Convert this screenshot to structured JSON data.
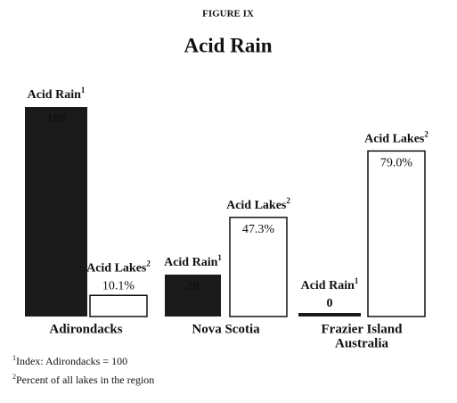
{
  "chart_data": {
    "type": "bar",
    "figure_label": "FIGURE IX",
    "title": "Acid Rain",
    "categories": [
      "Adirondacks",
      "Nova Scotia",
      [
        "Frazier Island",
        "Australia"
      ]
    ],
    "series": [
      {
        "name": "Acid Rain",
        "note": "1",
        "color": "#1a1a1a",
        "values": [
          100,
          20,
          0
        ]
      },
      {
        "name": "Acid Lakes",
        "note": "2",
        "color": "#ffffff",
        "values": [
          10.1,
          47.3,
          79.0
        ],
        "value_labels": [
          "10.1%",
          "47.3%",
          "79.0%"
        ]
      }
    ],
    "footnotes": [
      {
        "marker": "1",
        "text": "Index: Adirondacks = 100"
      },
      {
        "marker": "2",
        "text": "Percent of all lakes in the region"
      }
    ]
  }
}
